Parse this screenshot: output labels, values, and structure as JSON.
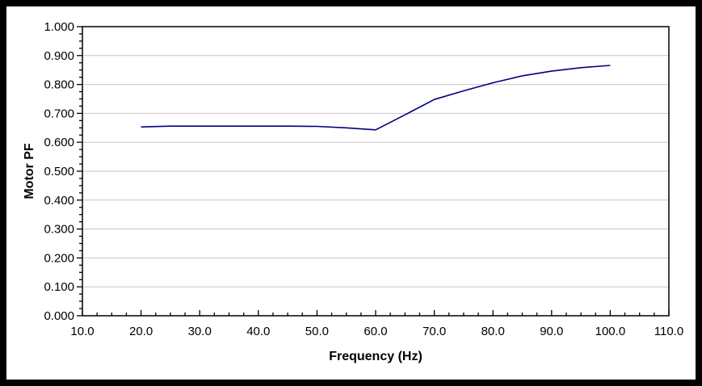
{
  "chart_data": {
    "type": "line",
    "title": "",
    "xlabel": "Frequency (Hz)",
    "ylabel": "Motor PF",
    "xlim": [
      10,
      110
    ],
    "ylim": [
      0.0,
      1.0
    ],
    "grid": "horizontal-major-only",
    "legend": "none",
    "x_tick_values": [
      10,
      20,
      30,
      40,
      50,
      60,
      70,
      80,
      90,
      100,
      110
    ],
    "x_tick_labels": [
      "10.0",
      "20.0",
      "30.0",
      "40.0",
      "50.0",
      "60.0",
      "70.0",
      "80.0",
      "90.0",
      "100.0",
      "110.0"
    ],
    "y_tick_values": [
      0.0,
      0.1,
      0.2,
      0.3,
      0.4,
      0.5,
      0.6,
      0.7,
      0.8,
      0.9,
      1.0
    ],
    "y_tick_labels": [
      "0.000",
      "0.100",
      "0.200",
      "0.300",
      "0.400",
      "0.500",
      "0.600",
      "0.700",
      "0.800",
      "0.900",
      "1.000"
    ],
    "x_minor_step": 2.5,
    "y_minor_step": 0.025,
    "x": [
      20,
      25,
      30,
      35,
      40,
      45,
      50,
      55,
      60,
      65,
      70,
      75,
      80,
      85,
      90,
      95,
      100
    ],
    "series": [
      {
        "name": "Motor PF",
        "values": [
          0.653,
          0.656,
          0.656,
          0.656,
          0.656,
          0.656,
          0.655,
          0.65,
          0.643,
          0.695,
          0.748,
          0.778,
          0.806,
          0.83,
          0.846,
          0.858,
          0.866
        ]
      }
    ],
    "colors": {
      "line": "#000080",
      "grid": "#c6c6c6",
      "axis": "#000000",
      "plot_background": "#ffffff",
      "frame": "#000000"
    }
  }
}
